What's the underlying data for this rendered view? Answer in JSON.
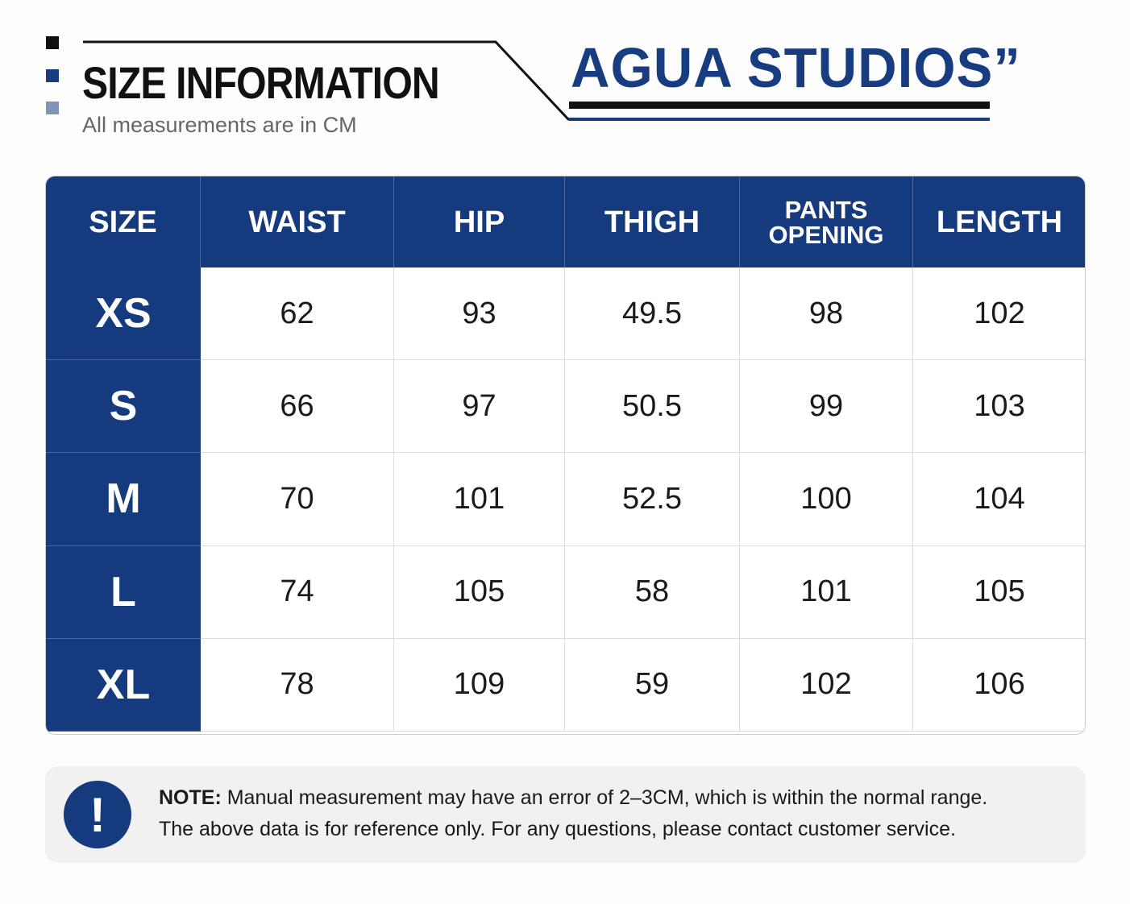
{
  "header": {
    "title": "SIZE INFORMATION",
    "subtitle": "All measurements are in CM",
    "brand": "AGUA STUDIOS”"
  },
  "table": {
    "columns": [
      "SIZE",
      "WAIST",
      "HIP",
      "THIGH",
      "PANTS OPENING",
      "LENGTH"
    ],
    "rows": [
      [
        "XS",
        62,
        93,
        49.5,
        98,
        102
      ],
      [
        "S",
        66,
        97,
        50.5,
        99,
        103
      ],
      [
        "M",
        70,
        101,
        52.5,
        100,
        104
      ],
      [
        "L",
        74,
        105,
        58,
        101,
        105
      ],
      [
        "XL",
        78,
        109,
        59,
        102,
        106
      ]
    ]
  },
  "note": {
    "label": "NOTE:",
    "lines": [
      "Manual measurement may have an error of 2–3CM, which is within the normal range.",
      "The above data is for reference only. For any questions, please contact customer service."
    ],
    "icon": "!"
  }
}
